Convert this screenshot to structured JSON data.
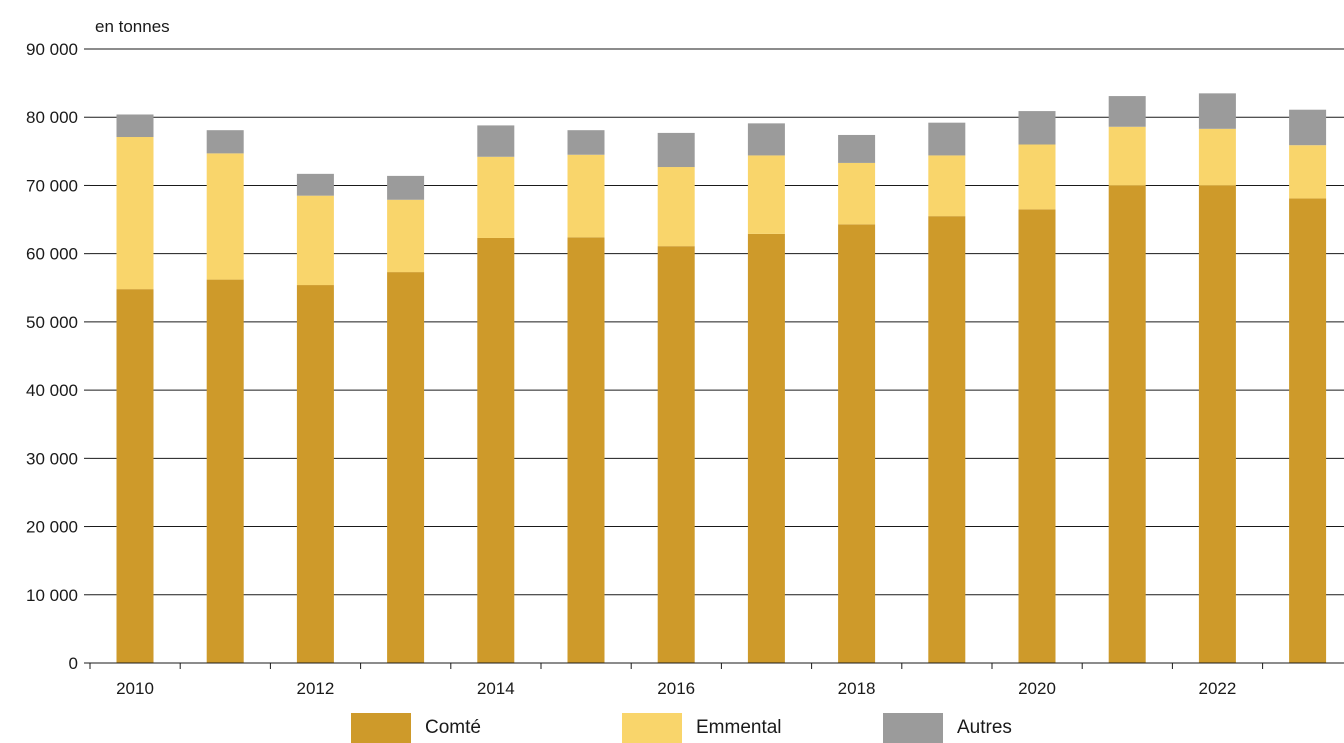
{
  "chart_data": {
    "type": "bar",
    "stacked": true,
    "unit_label": "en tonnes",
    "title": "",
    "xlabel": "",
    "ylabel": "",
    "categories": [
      "2010",
      "2011",
      "2012",
      "2013",
      "2014",
      "2015",
      "2016",
      "2017",
      "2018",
      "2019",
      "2020",
      "2021",
      "2022",
      "2023"
    ],
    "x_tick_labels": [
      "2010",
      "2012",
      "2014",
      "2016",
      "2018",
      "2020",
      "2022"
    ],
    "y_ticks": [
      0,
      10000,
      20000,
      30000,
      40000,
      50000,
      60000,
      70000,
      80000,
      90000
    ],
    "y_tick_labels": [
      "0",
      "10 000",
      "20 000",
      "30 000",
      "40 000",
      "50 000",
      "60 000",
      "70 000",
      "80 000",
      "90 000"
    ],
    "ylim": [
      0,
      90000
    ],
    "grid": "horizontal",
    "legend_position": "bottom",
    "series": [
      {
        "name": "Comté",
        "color": "#CE9A2A",
        "values": [
          54800,
          56200,
          55400,
          57300,
          62300,
          62400,
          61100,
          62900,
          64300,
          65500,
          66500,
          70000,
          70000,
          68100
        ]
      },
      {
        "name": "Emmental",
        "color": "#F9D56B",
        "values": [
          22300,
          18500,
          13100,
          10600,
          11900,
          12100,
          11600,
          11500,
          9000,
          8900,
          9500,
          8600,
          8300,
          7800
        ]
      },
      {
        "name": "Autres",
        "color": "#9B9B9B",
        "values": [
          3300,
          3400,
          3200,
          3500,
          4600,
          3600,
          5000,
          4700,
          4100,
          4800,
          4900,
          4500,
          5200,
          5200
        ]
      }
    ]
  }
}
